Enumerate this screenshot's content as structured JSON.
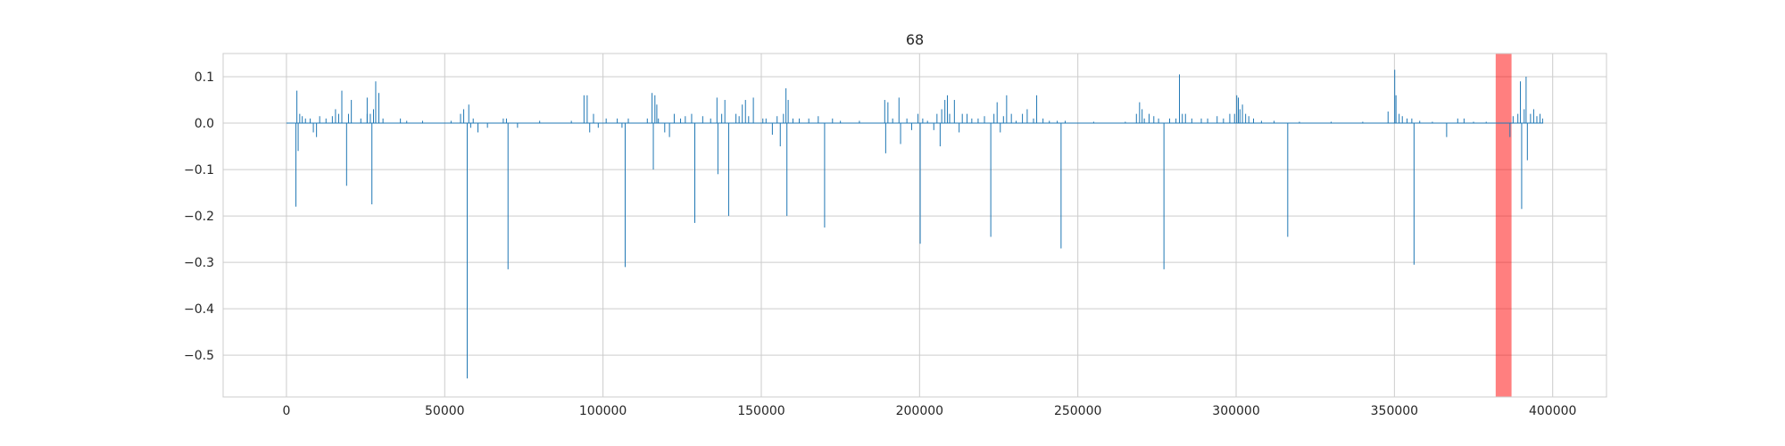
{
  "chart_data": {
    "type": "line",
    "title": "68",
    "xlabel": "",
    "ylabel": "",
    "xlim": [
      -20000,
      417000
    ],
    "ylim": [
      -0.59,
      0.15
    ],
    "grid": true,
    "x_ticks": [
      0,
      50000,
      100000,
      150000,
      200000,
      250000,
      300000,
      350000,
      400000
    ],
    "x_tick_labels": [
      "0",
      "50000",
      "100000",
      "150000",
      "200000",
      "250000",
      "300000",
      "350000",
      "400000"
    ],
    "y_ticks": [
      0.1,
      0.0,
      -0.1,
      -0.2,
      -0.3,
      -0.4,
      -0.5
    ],
    "y_tick_labels": [
      "0.1",
      "0.0",
      "−0.1",
      "−0.2",
      "−0.3",
      "−0.4",
      "−0.5"
    ],
    "highlight_span": {
      "x_start": 382000,
      "x_end": 387000,
      "color": "#ff0000",
      "alpha": 0.5
    },
    "series": [
      {
        "color": "#1f77b4",
        "baseline": 0.0,
        "x_start": 0,
        "x_end": 397000,
        "spikes": [
          [
            3000,
            -0.18
          ],
          [
            3300,
            0.07
          ],
          [
            3700,
            -0.06
          ],
          [
            4200,
            0.02
          ],
          [
            5000,
            0.015
          ],
          [
            6000,
            0.01
          ],
          [
            7500,
            0.01
          ],
          [
            8500,
            -0.02
          ],
          [
            9500,
            -0.03
          ],
          [
            10500,
            0.015
          ],
          [
            12500,
            0.01
          ],
          [
            14500,
            0.015
          ],
          [
            15500,
            0.03
          ],
          [
            16500,
            0.02
          ],
          [
            17500,
            0.07
          ],
          [
            19000,
            -0.135
          ],
          [
            19600,
            0.02
          ],
          [
            20500,
            0.05
          ],
          [
            23500,
            0.01
          ],
          [
            25500,
            0.02
          ],
          [
            25500,
            0.055
          ],
          [
            26500,
            0.02
          ],
          [
            27000,
            -0.175
          ],
          [
            27500,
            0.03
          ],
          [
            28200,
            0.09
          ],
          [
            29200,
            0.065
          ],
          [
            30500,
            0.01
          ],
          [
            36000,
            0.01
          ],
          [
            38000,
            0.005
          ],
          [
            43000,
            0.005
          ],
          [
            52000,
            0.005
          ],
          [
            55000,
            0.02
          ],
          [
            56000,
            0.03
          ],
          [
            57100,
            -0.55
          ],
          [
            57600,
            0.04
          ],
          [
            58200,
            -0.01
          ],
          [
            59000,
            0.01
          ],
          [
            60500,
            -0.02
          ],
          [
            63500,
            -0.01
          ],
          [
            68500,
            0.01
          ],
          [
            69500,
            0.01
          ],
          [
            70000,
            -0.315
          ],
          [
            73000,
            -0.01
          ],
          [
            80000,
            0.005
          ],
          [
            90000,
            0.005
          ],
          [
            94000,
            0.06
          ],
          [
            95000,
            0.06
          ],
          [
            95800,
            -0.02
          ],
          [
            97000,
            0.02
          ],
          [
            98500,
            -0.01
          ],
          [
            101000,
            0.01
          ],
          [
            104500,
            0.01
          ],
          [
            106000,
            -0.01
          ],
          [
            107000,
            -0.31
          ],
          [
            108000,
            0.01
          ],
          [
            114000,
            0.01
          ],
          [
            115500,
            0.065
          ],
          [
            115900,
            -0.1
          ],
          [
            116400,
            0.06
          ],
          [
            117000,
            0.04
          ],
          [
            117500,
            0.01
          ],
          [
            119500,
            -0.02
          ],
          [
            121000,
            -0.03
          ],
          [
            122500,
            0.02
          ],
          [
            124500,
            0.01
          ],
          [
            126000,
            0.015
          ],
          [
            128000,
            0.02
          ],
          [
            129000,
            -0.215
          ],
          [
            131500,
            0.015
          ],
          [
            134000,
            0.01
          ],
          [
            136000,
            0.055
          ],
          [
            136300,
            -0.11
          ],
          [
            137500,
            0.02
          ],
          [
            138500,
            0.05
          ],
          [
            139700,
            -0.2
          ],
          [
            142000,
            0.02
          ],
          [
            143000,
            0.015
          ],
          [
            144000,
            0.04
          ],
          [
            145000,
            0.05
          ],
          [
            146000,
            0.015
          ],
          [
            147500,
            0.055
          ],
          [
            150500,
            0.01
          ],
          [
            151500,
            0.01
          ],
          [
            153500,
            -0.025
          ],
          [
            155000,
            0.015
          ],
          [
            156000,
            -0.05
          ],
          [
            157000,
            0.02
          ],
          [
            157800,
            0.075
          ],
          [
            158100,
            -0.2
          ],
          [
            158500,
            0.05
          ],
          [
            160000,
            0.01
          ],
          [
            162000,
            0.01
          ],
          [
            165000,
            0.01
          ],
          [
            168000,
            0.015
          ],
          [
            170000,
            -0.225
          ],
          [
            172500,
            0.01
          ],
          [
            175000,
            0.005
          ],
          [
            181000,
            0.005
          ],
          [
            189000,
            0.05
          ],
          [
            189300,
            -0.065
          ],
          [
            190000,
            0.045
          ],
          [
            191500,
            0.01
          ],
          [
            193500,
            0.055
          ],
          [
            194000,
            -0.045
          ],
          [
            196000,
            0.01
          ],
          [
            197500,
            -0.015
          ],
          [
            199500,
            0.02
          ],
          [
            200200,
            -0.26
          ],
          [
            201000,
            0.01
          ],
          [
            202500,
            0.005
          ],
          [
            204500,
            -0.015
          ],
          [
            205500,
            0.02
          ],
          [
            206500,
            -0.05
          ],
          [
            207000,
            0.03
          ],
          [
            208000,
            0.05
          ],
          [
            208800,
            0.06
          ],
          [
            209500,
            0.02
          ],
          [
            211000,
            0.05
          ],
          [
            212500,
            -0.02
          ],
          [
            213500,
            0.02
          ],
          [
            215000,
            0.02
          ],
          [
            216500,
            0.01
          ],
          [
            218500,
            0.01
          ],
          [
            220500,
            0.015
          ],
          [
            222500,
            -0.245
          ],
          [
            223500,
            0.02
          ],
          [
            224500,
            0.045
          ],
          [
            225500,
            -0.02
          ],
          [
            226500,
            0.015
          ],
          [
            227500,
            0.06
          ],
          [
            229000,
            0.02
          ],
          [
            230500,
            0.005
          ],
          [
            232500,
            0.02
          ],
          [
            234000,
            0.03
          ],
          [
            236000,
            0.01
          ],
          [
            237000,
            0.06
          ],
          [
            239000,
            0.01
          ],
          [
            241000,
            0.005
          ],
          [
            243500,
            0.005
          ],
          [
            244700,
            -0.27
          ],
          [
            246000,
            0.005
          ],
          [
            255000,
            0.003
          ],
          [
            265000,
            0.003
          ],
          [
            268500,
            0.02
          ],
          [
            269500,
            0.045
          ],
          [
            270300,
            0.03
          ],
          [
            271000,
            0.01
          ],
          [
            272500,
            0.02
          ],
          [
            274000,
            0.015
          ],
          [
            275500,
            0.01
          ],
          [
            277200,
            -0.315
          ],
          [
            279000,
            0.01
          ],
          [
            281000,
            0.01
          ],
          [
            282100,
            0.105
          ],
          [
            283000,
            0.02
          ],
          [
            284000,
            0.02
          ],
          [
            286000,
            0.01
          ],
          [
            289000,
            0.01
          ],
          [
            291000,
            0.01
          ],
          [
            294000,
            0.015
          ],
          [
            296000,
            0.01
          ],
          [
            298000,
            0.02
          ],
          [
            299500,
            0.02
          ],
          [
            300200,
            0.06
          ],
          [
            300700,
            0.055
          ],
          [
            301200,
            0.03
          ],
          [
            302000,
            0.04
          ],
          [
            303000,
            0.02
          ],
          [
            304000,
            0.015
          ],
          [
            305500,
            0.01
          ],
          [
            308000,
            0.005
          ],
          [
            312000,
            0.005
          ],
          [
            316300,
            -0.245
          ],
          [
            320000,
            0.003
          ],
          [
            330000,
            0.003
          ],
          [
            340000,
            0.003
          ],
          [
            348000,
            0.025
          ],
          [
            350100,
            0.115
          ],
          [
            350500,
            0.06
          ],
          [
            351500,
            0.02
          ],
          [
            352500,
            0.015
          ],
          [
            354000,
            0.01
          ],
          [
            355500,
            0.01
          ],
          [
            356200,
            -0.305
          ],
          [
            358000,
            0.005
          ],
          [
            362000,
            0.003
          ],
          [
            366500,
            -0.03
          ],
          [
            370000,
            0.01
          ],
          [
            372000,
            0.01
          ],
          [
            375000,
            0.003
          ],
          [
            379000,
            0.003
          ],
          [
            386500,
            -0.03
          ],
          [
            387500,
            0.015
          ],
          [
            389000,
            0.02
          ],
          [
            389800,
            0.09
          ],
          [
            390200,
            -0.185
          ],
          [
            391000,
            0.03
          ],
          [
            391600,
            0.1
          ],
          [
            392000,
            -0.08
          ],
          [
            393000,
            0.02
          ],
          [
            394000,
            0.03
          ],
          [
            395000,
            0.015
          ],
          [
            396000,
            0.02
          ],
          [
            396800,
            0.01
          ]
        ]
      }
    ]
  }
}
